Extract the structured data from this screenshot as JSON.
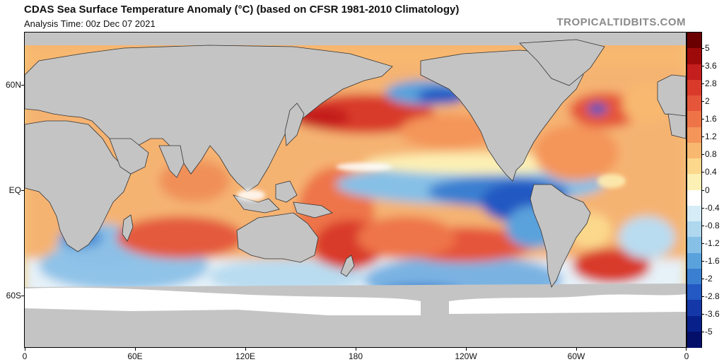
{
  "header": {
    "title": "CDAS Sea Surface Temperature Anomaly (°C) (based on CFSR 1981-2010 Climatology)",
    "subtitle": "Analysis Time: 00z Dec 07 2021",
    "credit": "TROPICALTIDBITS.COM"
  },
  "axes": {
    "lat_labels": [
      "60N",
      "EQ",
      "60S"
    ],
    "lon_labels": [
      "0",
      "60E",
      "120E",
      "180",
      "120W",
      "60W",
      "0"
    ]
  },
  "colorbar": {
    "labels": [
      "5",
      "3.6",
      "2.8",
      "2",
      "1.6",
      "1.2",
      "0.8",
      "0.4",
      "0",
      "-0.4",
      "-0.8",
      "-1.2",
      "-1.6",
      "-2",
      "-2.8",
      "-3.6",
      "-5"
    ],
    "colors": [
      "#6b0000",
      "#9e0a0a",
      "#c41e1e",
      "#d93a2a",
      "#e5553a",
      "#ee7448",
      "#f4955a",
      "#f8b870",
      "#fbd88c",
      "#fdf0b4",
      "#ffffff",
      "#d6ecf7",
      "#afd8ef",
      "#86c0e6",
      "#5aa2dc",
      "#3a7fd0",
      "#2458c2",
      "#1438a8",
      "#08208a",
      "#040f6a"
    ]
  },
  "map": {
    "land_color": "#c4c4c4",
    "ice_color": "#ffffff"
  }
}
